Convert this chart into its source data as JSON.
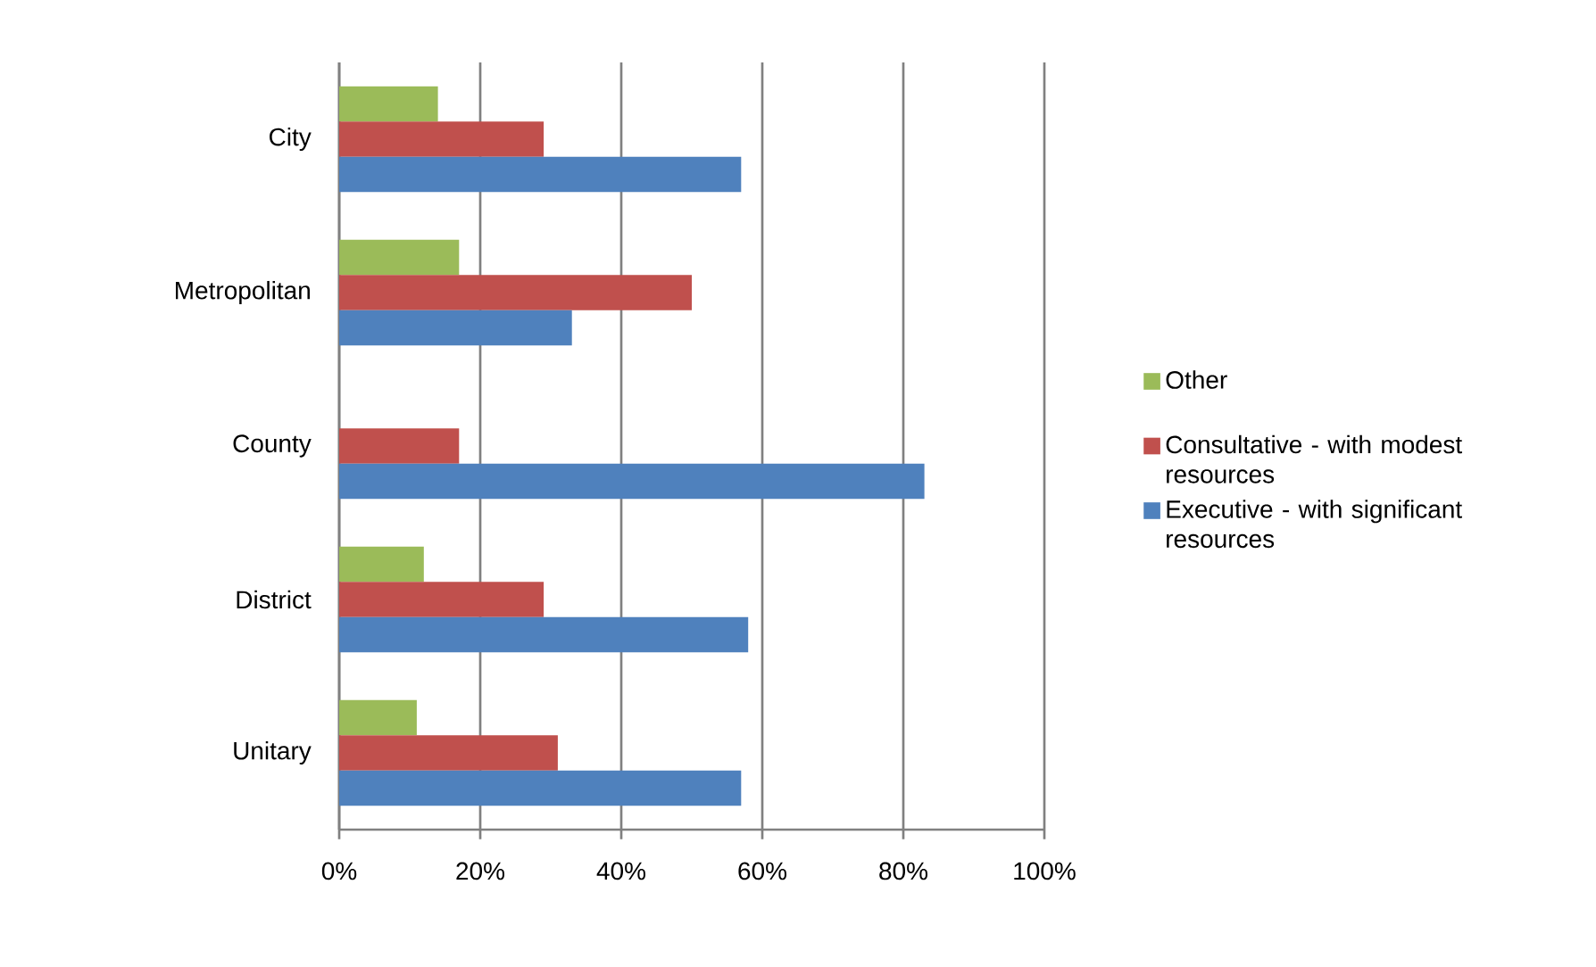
{
  "chart_data": {
    "type": "bar",
    "orientation": "horizontal",
    "categories": [
      "City",
      "Metropolitan",
      "County",
      "District",
      "Unitary"
    ],
    "series": [
      {
        "name": "Other",
        "color": "#9bbb59",
        "values": [
          14,
          17,
          0,
          12,
          11
        ]
      },
      {
        "name": "Consultative - with modest resources",
        "color": "#c0504d",
        "values": [
          29,
          50,
          17,
          29,
          31
        ]
      },
      {
        "name": "Executive - with significant resources",
        "color": "#4f81bd",
        "values": [
          57,
          33,
          83,
          58,
          57
        ]
      }
    ],
    "xlim": [
      0,
      100
    ],
    "xticks": [
      {
        "value": 0,
        "label": "0%"
      },
      {
        "value": 20,
        "label": "20%"
      },
      {
        "value": 40,
        "label": "40%"
      },
      {
        "value": 60,
        "label": "60%"
      },
      {
        "value": 80,
        "label": "80%"
      },
      {
        "value": 100,
        "label": "100%"
      }
    ],
    "grid": "x",
    "legend": "right"
  }
}
